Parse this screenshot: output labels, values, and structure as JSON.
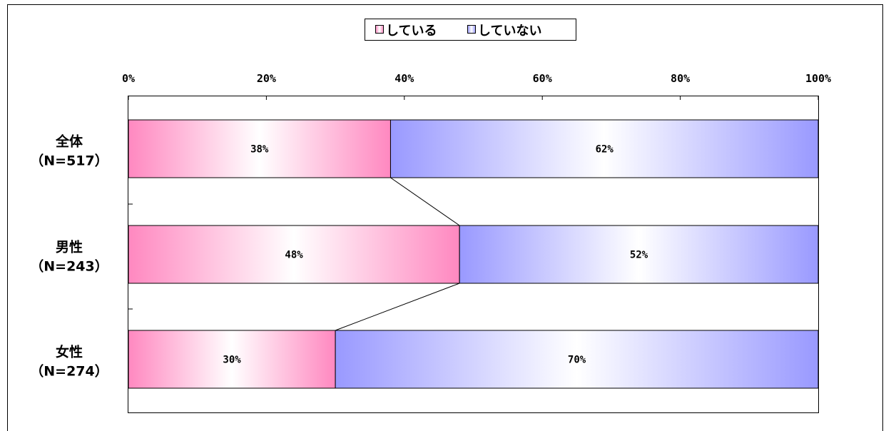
{
  "chart_data": {
    "type": "bar",
    "stacked": "percent",
    "orientation": "horizontal",
    "categories": [
      [
        "全体",
        "（N=517）"
      ],
      [
        "男性",
        "（N=243）"
      ],
      [
        "女性",
        "（N=274）"
      ]
    ],
    "series": [
      {
        "name": "している",
        "values": [
          38,
          48,
          30
        ],
        "color": "#ff88c0"
      },
      {
        "name": "していない",
        "values": [
          62,
          52,
          70
        ],
        "color": "#9999ff"
      }
    ],
    "x_ticks": [
      "0%",
      "20%",
      "40%",
      "60%",
      "80%",
      "100%"
    ],
    "xlim": [
      0,
      100
    ],
    "value_labels": [
      [
        "38%",
        "48%",
        "30%"
      ],
      [
        "62%",
        "52%",
        "70%"
      ]
    ],
    "legend_position": "top-center",
    "grid": false,
    "series_lines": true
  }
}
